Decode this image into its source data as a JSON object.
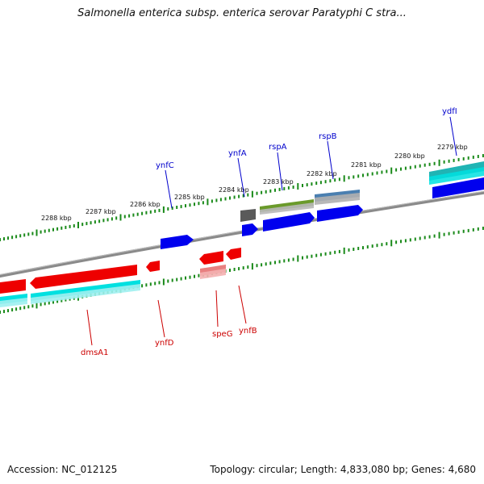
{
  "title": "Salmonella enterica subsp. enterica serovar Paratyphi C stra...",
  "footer": {
    "accession": "Accession: NC_012125",
    "summary": "Topology: circular; Length: 4,833,080 bp; Genes: 4,680"
  },
  "colors": {
    "plus_strand_cds": "#0000ee",
    "minus_strand_cds": "#ee0000",
    "cyan_feature": "#00d8d8",
    "teal_feature": "#20b0b0",
    "plus_label": "#0000cc",
    "minus_label": "#cc0000",
    "tick": "#1a8a1a",
    "backbone": "#808080"
  },
  "kbp_labels": [
    "2279 kbp",
    "2280 kbp",
    "2281 kbp",
    "2282 kbp",
    "2283 kbp",
    "2284 kbp",
    "2285 kbp",
    "2286 kbp",
    "2287 kbp",
    "2288 kbp"
  ],
  "gene_labels_plus": [
    "ydfI",
    "rspB",
    "rspA",
    "ynfA",
    "ynfC"
  ],
  "gene_labels_minus": [
    "ynfB",
    "speG",
    "ynfD",
    "dmsA1"
  ]
}
